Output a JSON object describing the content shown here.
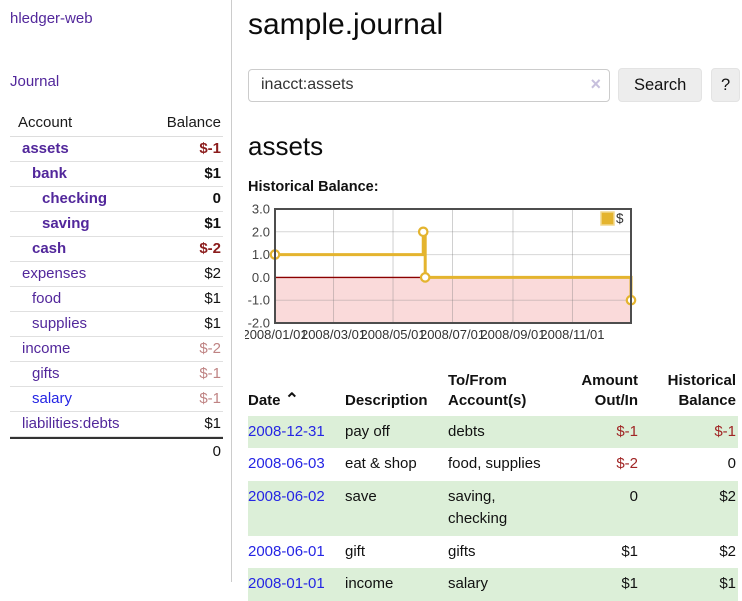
{
  "app": {
    "brand": "hledger-web",
    "nav_journal": "Journal"
  },
  "sidebar": {
    "col_account": "Account",
    "col_balance": "Balance",
    "accounts": [
      {
        "name": "assets",
        "depth": 1,
        "bold": true,
        "balance": "$-1"
      },
      {
        "name": "bank",
        "depth": 2,
        "bold": true,
        "balance": "$1"
      },
      {
        "name": "checking",
        "depth": 3,
        "bold": true,
        "balance": "0"
      },
      {
        "name": "saving",
        "depth": 3,
        "bold": true,
        "balance": "$1"
      },
      {
        "name": "cash",
        "depth": 2,
        "bold": true,
        "balance": "$-2"
      },
      {
        "name": "expenses",
        "depth": 1,
        "bold": false,
        "balance": "$2"
      },
      {
        "name": "food",
        "depth": 2,
        "bold": false,
        "balance": "$1"
      },
      {
        "name": "supplies",
        "depth": 2,
        "bold": false,
        "balance": "$1"
      },
      {
        "name": "income",
        "depth": 1,
        "bold": false,
        "balance": "$-2"
      },
      {
        "name": "gifts",
        "depth": 2,
        "bold": false,
        "balance": "$-1"
      },
      {
        "name": "salary",
        "depth": 2,
        "bold": false,
        "balance": "$-1",
        "unvisited": true
      },
      {
        "name": "liabilities:debts",
        "depth": 1,
        "bold": false,
        "balance": "$1"
      }
    ],
    "total": "0"
  },
  "header": {
    "title": "sample.journal"
  },
  "search": {
    "value": "inacct:assets",
    "clear_icon": "×",
    "button_label": "Search",
    "help_label": "?"
  },
  "register": {
    "heading": "assets",
    "chart_label": "Historical Balance:",
    "headers": {
      "date": "Date",
      "sort_caret": "⌃",
      "description": "Description",
      "accounts_l1": "To/From",
      "accounts_l2": "Account(s)",
      "amount_l1": "Amount",
      "amount_l2": "Out/In",
      "balance_l1": "Historical",
      "balance_l2": "Balance"
    },
    "rows": [
      {
        "date": "2008-12-31",
        "description": "pay off",
        "accounts": "debts",
        "amount": "$-1",
        "balance": "$-1",
        "green": true
      },
      {
        "date": "2008-06-03",
        "description": "eat & shop",
        "accounts": "food, supplies",
        "amount": "$-2",
        "balance": "0",
        "green": false
      },
      {
        "date": "2008-06-02",
        "description": "save",
        "accounts": "saving, checking",
        "amount": "0",
        "balance": "$2",
        "green": true
      },
      {
        "date": "2008-06-01",
        "description": "gift",
        "accounts": "gifts",
        "amount": "$1",
        "balance": "$2",
        "green": false
      },
      {
        "date": "2008-01-01",
        "description": "income",
        "accounts": "salary",
        "amount": "$1",
        "balance": "$1",
        "green": true
      }
    ]
  },
  "chart_data": {
    "type": "line",
    "subtype": "step-after",
    "title": "Historical Balance:",
    "legend": {
      "label": "$",
      "position": "top-right"
    },
    "x_start": "2008-01-01",
    "x_span_days": 365,
    "series": [
      {
        "name": "$",
        "points": [
          [
            "2008-01-01",
            1
          ],
          [
            "2008-06-01",
            2
          ],
          [
            "2008-06-03",
            0
          ],
          [
            "2008-12-31",
            -1
          ]
        ]
      }
    ],
    "y_ticks": [
      "3.0",
      "2.0",
      "1.0",
      "0.0",
      "-1.0",
      "-2.0"
    ],
    "y_tick_values": [
      3,
      2,
      1,
      0,
      -1,
      -2
    ],
    "ylim": [
      -2,
      3
    ],
    "x_ticks": [
      "2008/01/01",
      "2008/03/01",
      "2008/05/01",
      "2008/07/01",
      "2008/09/01",
      "2008/11/01"
    ],
    "x_tick_days": [
      0,
      60,
      121,
      182,
      244,
      305
    ],
    "grid": true,
    "colors": {
      "line": "#e4b42e",
      "marker_fill": "#ffffff",
      "legend_border": "#f2d88e",
      "zero_line": "#8b0000",
      "negative_area": "#fadada",
      "plot_border": "#4d4d4d",
      "gridline": "#d6d6d6"
    }
  }
}
